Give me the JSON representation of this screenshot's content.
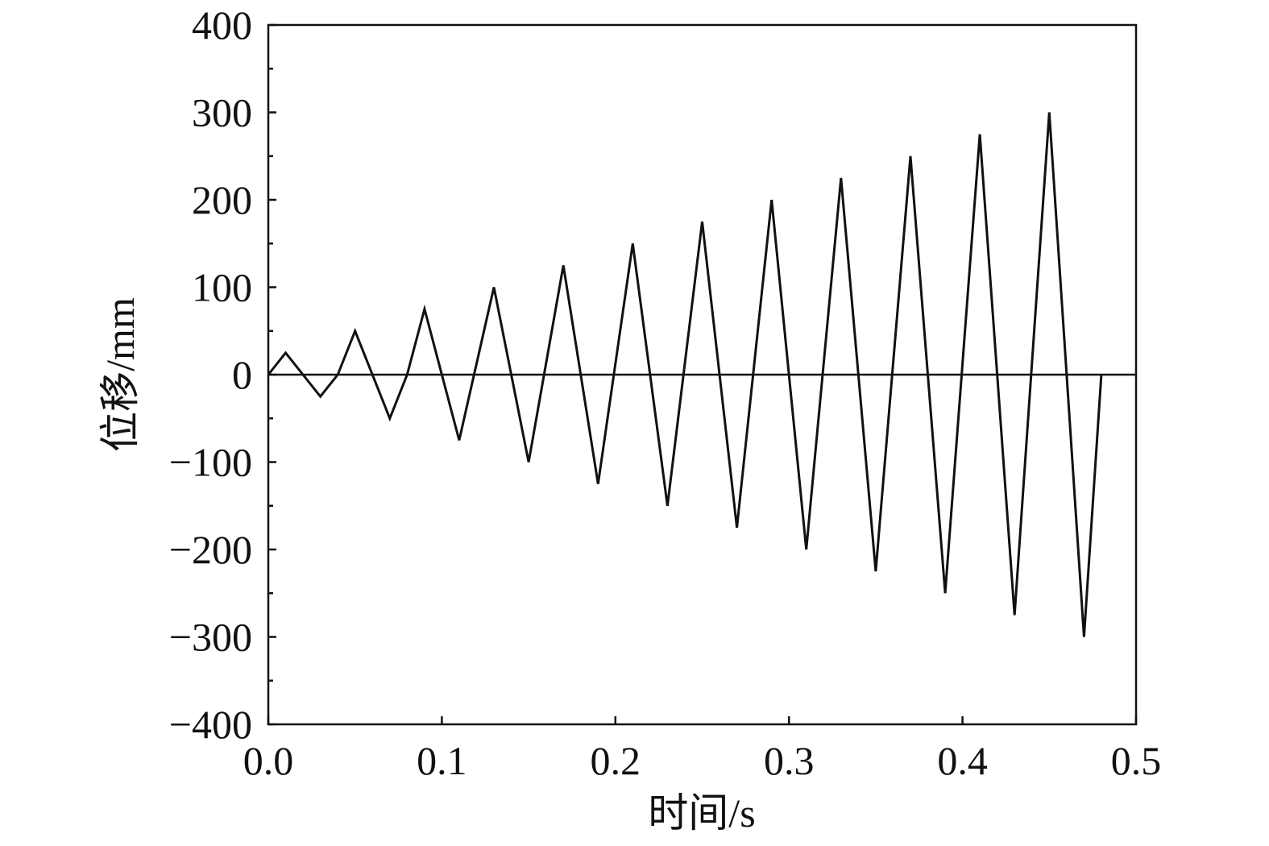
{
  "chart_data": {
    "type": "line",
    "title": "",
    "xlabel": "时间/s",
    "ylabel": "位移/mm",
    "xlim": [
      0,
      0.5
    ],
    "ylim": [
      -400,
      400
    ],
    "x_ticks": [
      0.0,
      0.1,
      0.2,
      0.3,
      0.4,
      0.5
    ],
    "x_tick_labels": [
      "0.0",
      "0.1",
      "0.2",
      "0.3",
      "0.4",
      "0.5"
    ],
    "y_ticks": [
      400,
      300,
      200,
      100,
      0,
      -100,
      -200,
      -300,
      -400
    ],
    "y_tick_labels": [
      "400",
      "300",
      "200",
      "100",
      "0",
      "−100",
      "−200",
      "−300",
      "−400"
    ],
    "y_minor_step": 50,
    "grid": false,
    "zero_line": true,
    "series": [
      {
        "x": [
          0,
          0.01,
          0.03,
          0.04,
          0.05,
          0.07,
          0.08,
          0.09,
          0.11,
          0.13,
          0.15,
          0.17,
          0.19,
          0.21,
          0.23,
          0.25,
          0.27,
          0.29,
          0.31,
          0.33,
          0.35,
          0.37,
          0.39,
          0.41,
          0.43,
          0.45,
          0.47,
          0.48
        ],
        "y": [
          0,
          25,
          -25,
          0,
          50,
          -50,
          0,
          75,
          -75,
          100,
          -100,
          125,
          -125,
          150,
          -150,
          175,
          -175,
          200,
          -200,
          225,
          -225,
          250,
          -250,
          275,
          -275,
          300,
          -300,
          0
        ],
        "color": "#111111"
      }
    ]
  }
}
